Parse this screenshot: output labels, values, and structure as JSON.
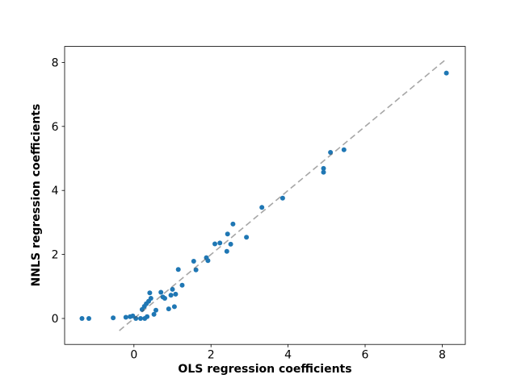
{
  "figure": {
    "background_color": "#ffffff"
  },
  "chart_data": {
    "type": "scatter",
    "title": "",
    "xlabel": "OLS regression coefficients",
    "ylabel": "NNLS regression coefficients",
    "xlim": [
      -1.8,
      8.6
    ],
    "ylim": [
      -0.81,
      8.5
    ],
    "xticks": [
      0,
      2,
      4,
      6,
      8
    ],
    "yticks": [
      0,
      2,
      4,
      6,
      8
    ],
    "grid": false,
    "legend": "none",
    "colors": {
      "marker": "#1f77b4",
      "dashed_line": "#4d4d4d",
      "dashed_line_opacity": 0.5,
      "axes": "#000000"
    },
    "identity_line": {
      "style": "dashed",
      "low": -0.38,
      "high": 8.07
    },
    "points": [
      [
        -1.35,
        0.0
      ],
      [
        -1.17,
        0.0
      ],
      [
        -0.54,
        0.02
      ],
      [
        -0.21,
        0.04
      ],
      [
        -0.1,
        0.06
      ],
      [
        -0.03,
        0.08
      ],
      [
        0.05,
        0.0
      ],
      [
        0.17,
        0.0
      ],
      [
        0.28,
        0.0
      ],
      [
        0.34,
        0.06
      ],
      [
        0.52,
        0.13
      ],
      [
        0.21,
        0.28
      ],
      [
        0.27,
        0.38
      ],
      [
        0.32,
        0.46
      ],
      [
        0.38,
        0.54
      ],
      [
        0.44,
        0.63
      ],
      [
        0.41,
        0.8
      ],
      [
        0.57,
        0.26
      ],
      [
        0.7,
        0.82
      ],
      [
        0.75,
        0.67
      ],
      [
        0.8,
        0.63
      ],
      [
        0.9,
        0.3
      ],
      [
        0.96,
        0.73
      ],
      [
        1.0,
        0.91
      ],
      [
        1.05,
        0.37
      ],
      [
        1.08,
        0.76
      ],
      [
        1.15,
        1.53
      ],
      [
        1.25,
        1.04
      ],
      [
        1.55,
        1.79
      ],
      [
        1.61,
        1.52
      ],
      [
        1.88,
        1.9
      ],
      [
        1.92,
        1.81
      ],
      [
        2.1,
        2.33
      ],
      [
        2.23,
        2.36
      ],
      [
        2.41,
        2.1
      ],
      [
        2.43,
        2.64
      ],
      [
        2.51,
        2.32
      ],
      [
        2.57,
        2.95
      ],
      [
        2.92,
        2.54
      ],
      [
        3.32,
        3.47
      ],
      [
        3.86,
        3.76
      ],
      [
        4.92,
        4.69
      ],
      [
        4.92,
        4.57
      ],
      [
        5.1,
        5.19
      ],
      [
        5.45,
        5.27
      ],
      [
        8.11,
        7.67
      ]
    ]
  }
}
